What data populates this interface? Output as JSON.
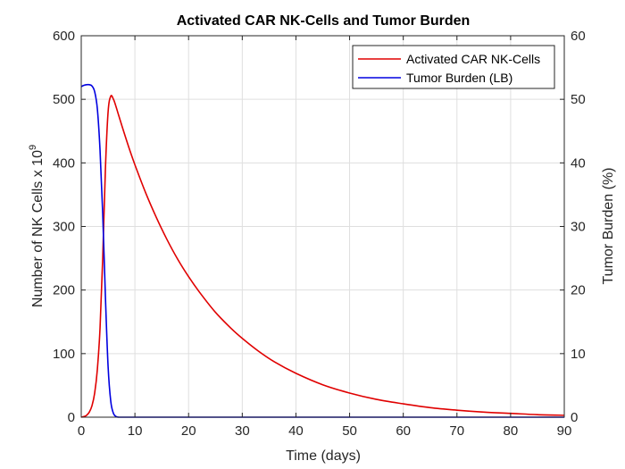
{
  "chart_data": {
    "type": "line",
    "title": "Activated CAR NK-Cells and Tumor Burden",
    "xlabel": "Time (days)",
    "ylabel_left_base": "Number of NK Cells x 10",
    "ylabel_left_exponent": "9",
    "ylabel_right": "Tumor Burden (%)",
    "xlim": [
      0,
      90
    ],
    "ylim_left": [
      0,
      600
    ],
    "ylim_right": [
      0,
      60
    ],
    "x_ticks": [
      "0",
      "10",
      "20",
      "30",
      "40",
      "50",
      "60",
      "70",
      "80",
      "90"
    ],
    "y_left_ticks": [
      "0",
      "100",
      "200",
      "300",
      "400",
      "500",
      "600"
    ],
    "y_right_ticks": [
      "0",
      "10",
      "20",
      "30",
      "40",
      "50",
      "60"
    ],
    "grid": true,
    "legend_position": "top-right",
    "series": [
      {
        "name": "Activated CAR NK-Cells",
        "axis": "left",
        "color": "#e00000",
        "x": [
          0,
          0.5,
          1,
          1.5,
          2,
          2.5,
          3,
          3.5,
          4,
          4.5,
          5,
          5.5,
          6,
          6.5,
          7,
          8,
          9,
          10,
          12,
          14,
          16,
          18,
          20,
          22,
          25,
          28,
          30,
          33,
          36,
          40,
          45,
          50,
          55,
          60,
          65,
          70,
          75,
          80,
          85,
          90
        ],
        "values": [
          0,
          1,
          3,
          8,
          18,
          38,
          75,
          140,
          250,
          390,
          480,
          505,
          500,
          488,
          474,
          447,
          421,
          397,
          353,
          314,
          279,
          248,
          221,
          197,
          165,
          139,
          124,
          104,
          87,
          69,
          51,
          38,
          28,
          21,
          15,
          11,
          8,
          6,
          4,
          3
        ]
      },
      {
        "name": "Tumor Burden (LB)",
        "axis": "right",
        "color": "#0000e0",
        "x": [
          0,
          0.5,
          1,
          1.5,
          2,
          2.5,
          3,
          3.5,
          4,
          4.5,
          5,
          5.5,
          6,
          6.5,
          7,
          8,
          10,
          20,
          30,
          40,
          50,
          60,
          70,
          80,
          90
        ],
        "values": [
          52,
          52.2,
          52.3,
          52.3,
          52.1,
          51.2,
          48.5,
          42,
          32,
          19,
          8,
          2.5,
          0.6,
          0.1,
          0,
          0,
          0,
          0,
          0,
          0,
          0,
          0,
          0,
          0,
          0
        ]
      }
    ]
  }
}
